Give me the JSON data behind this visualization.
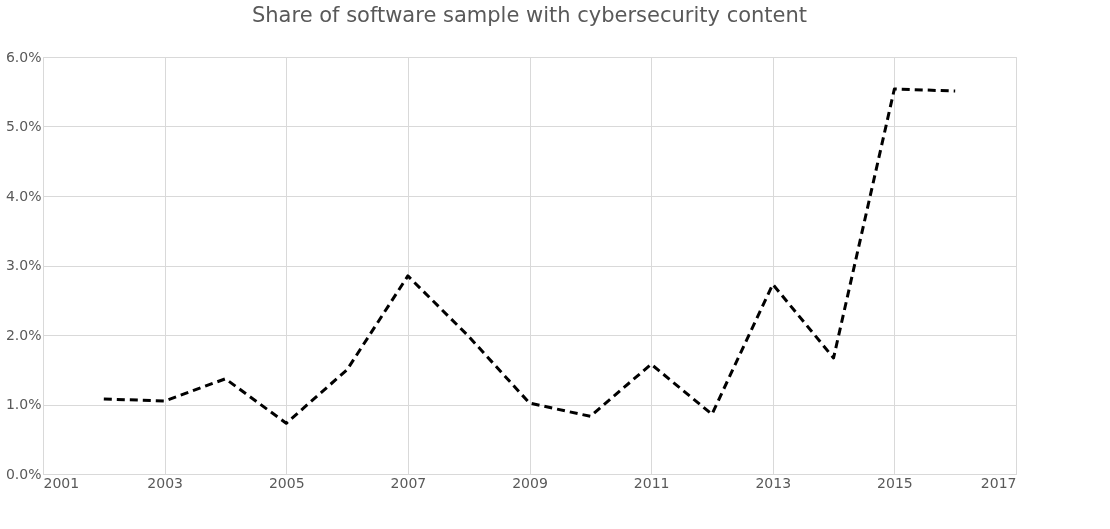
{
  "chart_data": {
    "type": "line",
    "title": "Share of software sample with cybersecurity content",
    "x": [
      2002,
      2003,
      2004,
      2005,
      2006,
      2007,
      2008,
      2009,
      2010,
      2011,
      2012,
      2013,
      2014,
      2015,
      2016
    ],
    "series": [
      {
        "color": "#000000",
        "values": [
          1.08,
          1.05,
          1.37,
          0.73,
          1.5,
          2.85,
          1.98,
          1.02,
          0.83,
          1.58,
          0.86,
          2.73,
          1.67,
          5.54,
          5.51
        ]
      }
    ],
    "xlim": [
      2001,
      2017
    ],
    "xticks": [
      2001,
      2003,
      2005,
      2007,
      2009,
      2011,
      2013,
      2015,
      2017
    ],
    "ylim": [
      0,
      6
    ],
    "yticks": [
      {
        "value": 0,
        "label": "0.0%"
      },
      {
        "value": 1,
        "label": "1.0%"
      },
      {
        "value": 2,
        "label": "2.0%"
      },
      {
        "value": 3,
        "label": "3.0%"
      },
      {
        "value": 4,
        "label": "4.0%"
      },
      {
        "value": 5,
        "label": "5.0%"
      },
      {
        "value": 6,
        "label": "6.0%"
      }
    ],
    "grid": true,
    "legend": false,
    "marker": "none",
    "line_style": "dashed"
  }
}
